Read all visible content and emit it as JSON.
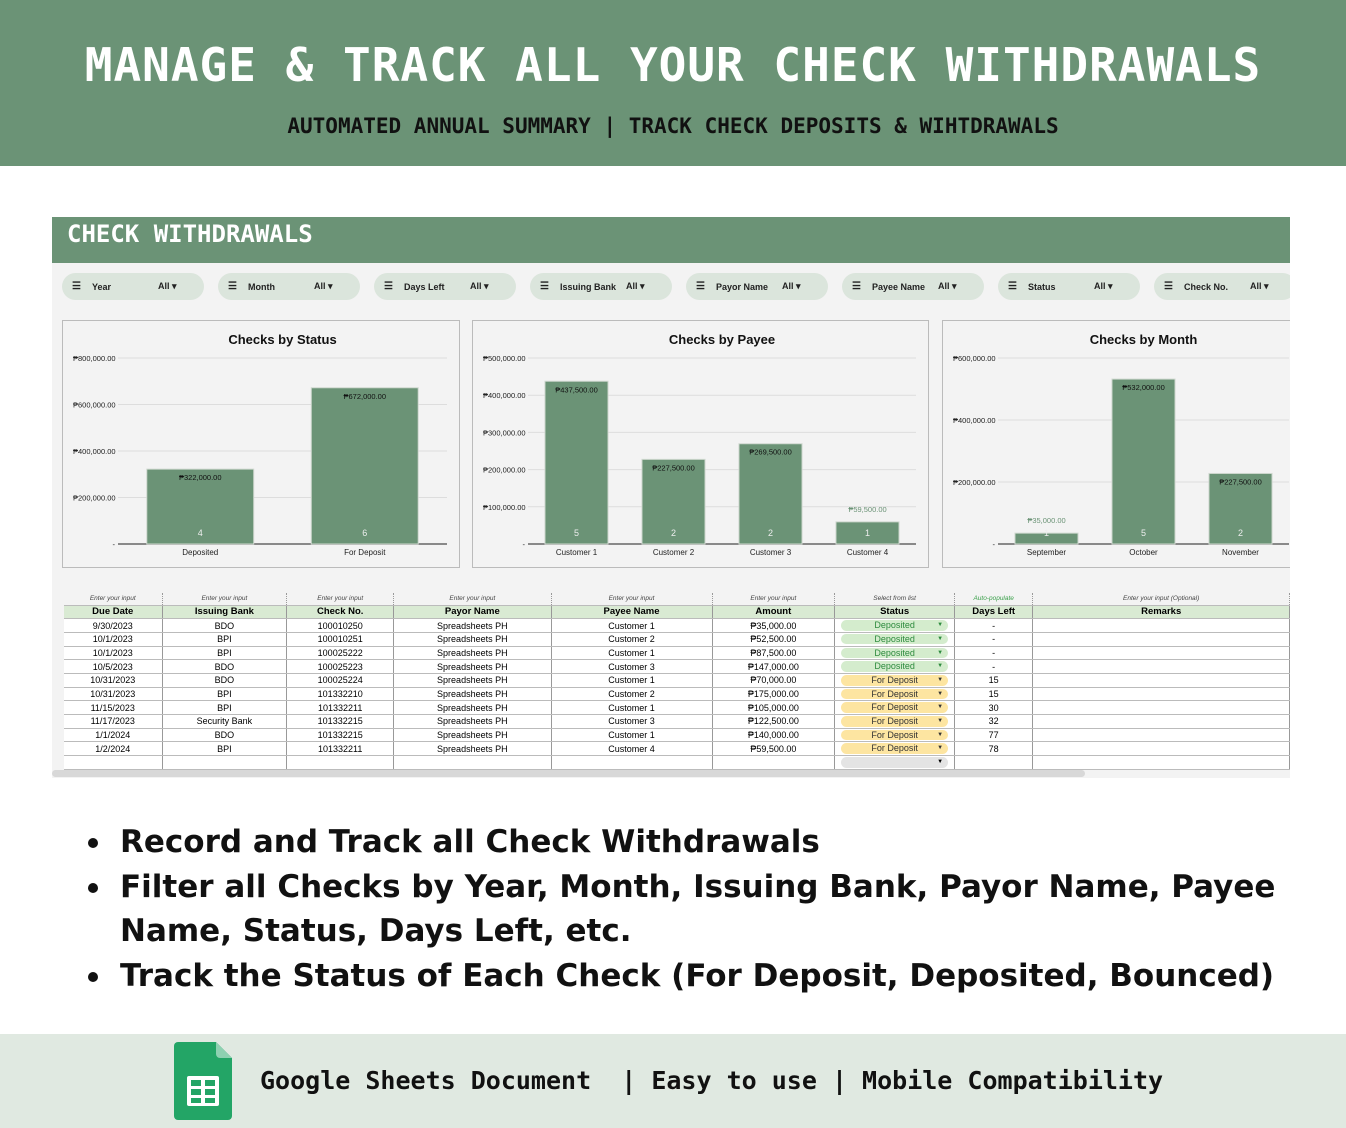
{
  "header": {
    "title": "MANAGE & TRACK ALL YOUR CHECK WITHDRAWALS",
    "subtitle": "AUTOMATED ANNUAL SUMMARY | TRACK CHECK DEPOSITS & WIHTDRAWALS"
  },
  "sheet": {
    "title": "CHECK WITHDRAWALS",
    "filters": [
      {
        "label": "Year",
        "value": "All ▾"
      },
      {
        "label": "Month",
        "value": "All ▾"
      },
      {
        "label": "Days Left",
        "value": "All ▾"
      },
      {
        "label": "Issuing Bank",
        "value": "All ▾"
      },
      {
        "label": "Payor Name",
        "value": "All ▾"
      },
      {
        "label": "Payee Name",
        "value": "All ▾"
      },
      {
        "label": "Status",
        "value": "All ▾"
      },
      {
        "label": "Check No.",
        "value": "All ▾"
      }
    ]
  },
  "chart_data": [
    {
      "type": "bar",
      "title": "Checks by Status",
      "categories": [
        "Deposited",
        "For Deposit"
      ],
      "values": [
        322000,
        672000
      ],
      "value_labels": [
        "₱322,000.00",
        "₱672,000.00"
      ],
      "counts": [
        "4",
        "6"
      ],
      "yticks": [
        "-",
        "₱200,000.00",
        "₱400,000.00",
        "₱600,000.00",
        "₱800,000.00"
      ],
      "ylim": [
        0,
        800000
      ],
      "color": "#6b9376"
    },
    {
      "type": "bar",
      "title": "Checks by Payee",
      "categories": [
        "Customer 1",
        "Customer 2",
        "Customer 3",
        "Customer 4"
      ],
      "values": [
        437500,
        227500,
        269500,
        59500
      ],
      "value_labels": [
        "₱437,500.00",
        "₱227,500.00",
        "₱269,500.00",
        "₱59,500.00"
      ],
      "counts": [
        "5",
        "2",
        "2",
        "1"
      ],
      "yticks": [
        "-",
        "₱100,000.00",
        "₱200,000.00",
        "₱300,000.00",
        "₱400,000.00",
        "₱500,000.00"
      ],
      "ylim": [
        0,
        500000
      ],
      "color": "#6b9376"
    },
    {
      "type": "bar",
      "title": "Checks by Month",
      "categories": [
        "September",
        "October",
        "November"
      ],
      "values": [
        35000,
        532000,
        227500
      ],
      "value_labels": [
        "₱35,000.00",
        "₱532,000.00",
        "₱227,500.00"
      ],
      "counts": [
        "1",
        "5",
        "2"
      ],
      "yticks": [
        "-",
        "₱200,000.00",
        "₱400,000.00",
        "₱600,000.00"
      ],
      "ylim": [
        0,
        600000
      ],
      "color": "#6b9376"
    }
  ],
  "table": {
    "hints": [
      "Enter your input",
      "Enter your input",
      "Enter your input",
      "Enter your input",
      "Enter your input",
      "Enter your input",
      "Select from list",
      "Auto-populate",
      "Enter your input (Optional)"
    ],
    "columns": [
      "Due Date",
      "Issuing Bank",
      "Check No.",
      "Payor Name",
      "Payee Name",
      "Amount",
      "Status",
      "Days Left",
      "Remarks"
    ],
    "rows": [
      [
        "9/30/2023",
        "BDO",
        "100010250",
        "Spreadsheets PH",
        "Customer 1",
        "₱35,000.00",
        "Deposited",
        "-",
        ""
      ],
      [
        "10/1/2023",
        "BPI",
        "100010251",
        "Spreadsheets PH",
        "Customer 2",
        "₱52,500.00",
        "Deposited",
        "-",
        ""
      ],
      [
        "10/1/2023",
        "BPI",
        "100025222",
        "Spreadsheets PH",
        "Customer 1",
        "₱87,500.00",
        "Deposited",
        "-",
        ""
      ],
      [
        "10/5/2023",
        "BDO",
        "100025223",
        "Spreadsheets PH",
        "Customer 3",
        "₱147,000.00",
        "Deposited",
        "-",
        ""
      ],
      [
        "10/31/2023",
        "BDO",
        "100025224",
        "Spreadsheets PH",
        "Customer 1",
        "₱70,000.00",
        "For Deposit",
        "15",
        ""
      ],
      [
        "10/31/2023",
        "BPI",
        "101332210",
        "Spreadsheets PH",
        "Customer 2",
        "₱175,000.00",
        "For Deposit",
        "15",
        ""
      ],
      [
        "11/15/2023",
        "BPI",
        "101332211",
        "Spreadsheets PH",
        "Customer 1",
        "₱105,000.00",
        "For Deposit",
        "30",
        ""
      ],
      [
        "11/17/2023",
        "Security Bank",
        "101332215",
        "Spreadsheets PH",
        "Customer 3",
        "₱122,500.00",
        "For Deposit",
        "32",
        ""
      ],
      [
        "1/1/2024",
        "BDO",
        "101332215",
        "Spreadsheets PH",
        "Customer 1",
        "₱140,000.00",
        "For Deposit",
        "77",
        ""
      ],
      [
        "1/2/2024",
        "BPI",
        "101332211",
        "Spreadsheets PH",
        "Customer 4",
        "₱59,500.00",
        "For Deposit",
        "78",
        ""
      ]
    ],
    "status_colors": {
      "Deposited": {
        "bg": "#d4eccd",
        "fg": "#2e8b3e"
      },
      "For Deposit": {
        "bg": "#fde5a1",
        "fg": "#333333"
      }
    }
  },
  "features": [
    "Record and Track all Check Withdrawals",
    "Filter all Checks by Year, Month, Issuing Bank, Payor Name, Payee Name, Status, Days Left, etc.",
    "Track the Status of Each Check (For Deposit, Deposited, Bounced)"
  ],
  "footer": {
    "text": "Google Sheets Document  | Easy to use | Mobile Compatibility"
  }
}
